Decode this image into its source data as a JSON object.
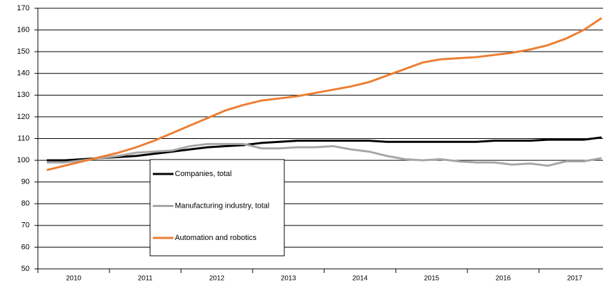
{
  "chart_data": {
    "type": "line",
    "categories": [
      "2010",
      null,
      null,
      null,
      "2011",
      null,
      null,
      null,
      "2012",
      null,
      null,
      null,
      "2013",
      null,
      null,
      null,
      "2014",
      null,
      null,
      null,
      "2015",
      null,
      null,
      null,
      "2016",
      null,
      null,
      null,
      "2017",
      null,
      null,
      null
    ],
    "series": [
      {
        "name": "Companies, total",
        "color": "#000000",
        "values": [
          100,
          100,
          100.5,
          101,
          101.5,
          102,
          103,
          104,
          105,
          106,
          106.5,
          107,
          108,
          108.5,
          109,
          109,
          109,
          109,
          109,
          108.5,
          108.5,
          108.5,
          108.5,
          108.5,
          108.5,
          109,
          109,
          109,
          109.5,
          109.5,
          109.5,
          110.5
        ]
      },
      {
        "name": "Manufacturing industry, total",
        "color": "#a6a6a6",
        "values": [
          99,
          99,
          100,
          101,
          102,
          103.5,
          104,
          104.5,
          106.5,
          107.5,
          107.5,
          107.5,
          105.5,
          105.5,
          106,
          106,
          106.5,
          105,
          104,
          102,
          100.5,
          100,
          100.5,
          99.5,
          99,
          99,
          98,
          98.5,
          97.5,
          99.5,
          99.5,
          101
        ]
      },
      {
        "name": "Automation and robotics",
        "color": "#ed7d31",
        "values": [
          95.5,
          97.5,
          99.5,
          101.5,
          103.5,
          106,
          109,
          112.5,
          116,
          119.5,
          123,
          125.5,
          127.5,
          128.5,
          129.5,
          131,
          132.5,
          134,
          136,
          139,
          142,
          145,
          146.5,
          147,
          147.5,
          148.5,
          149.5,
          151,
          153,
          156,
          160,
          165.5
        ]
      }
    ],
    "ylim": [
      50,
      170
    ],
    "yticks": [
      50,
      60,
      70,
      80,
      90,
      100,
      110,
      120,
      130,
      140,
      150,
      160,
      170
    ],
    "grid": true
  }
}
